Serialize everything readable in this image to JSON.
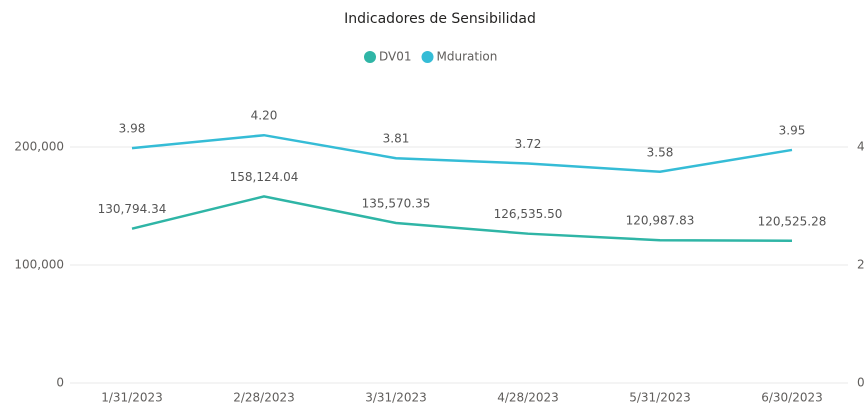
{
  "chart_data": {
    "type": "line",
    "title": "Indicadores de Sensibilidad",
    "categories": [
      "1/31/2023",
      "2/28/2023",
      "3/31/2023",
      "4/28/2023",
      "5/31/2023",
      "6/30/2023"
    ],
    "series": [
      {
        "name": "DV01",
        "color": "#2fb5a6",
        "values": [
          130794.34,
          158124.04,
          135570.35,
          126535.5,
          120987.83,
          120525.28
        ],
        "value_labels": [
          "130,794.34",
          "158,124.04",
          "135,570.35",
          "126,535.50",
          "120,987.83",
          "120,525.28"
        ]
      },
      {
        "name": "Mduration",
        "color": "#35bcd6",
        "axis": "y2",
        "values": [
          3.98,
          4.2,
          3.81,
          3.72,
          3.58,
          3.95
        ],
        "value_labels": [
          "3.98",
          "4.20",
          "3.81",
          "3.72",
          "3.58",
          "3.95"
        ]
      }
    ],
    "ylim": [
      0,
      250000
    ],
    "yticks": [
      0,
      {
        "value": 100000,
        "label": "100,000"
      },
      {
        "value": 200000,
        "label": "200,000"
      }
    ],
    "y2lim": [
      0,
      5
    ],
    "y2ticks": [
      0,
      2,
      4
    ],
    "grid": true,
    "legend": "top"
  }
}
